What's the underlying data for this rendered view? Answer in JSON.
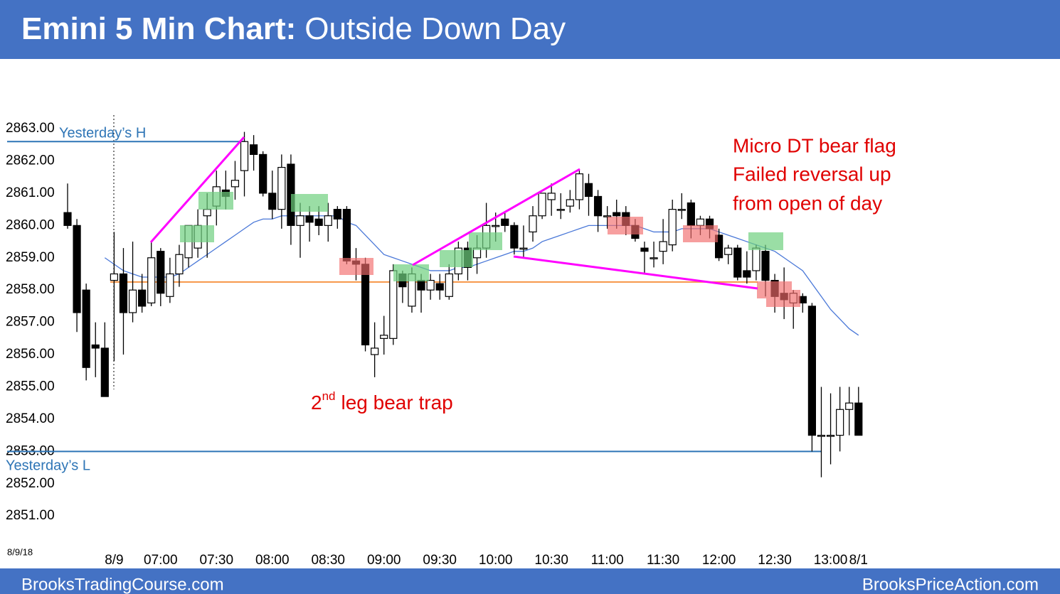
{
  "chart_data": {
    "type": "candlestick",
    "title_bold": "Emini 5 Min Chart:",
    "title": "Outside Down Day",
    "date_label": "8/9/18",
    "categories": [
      null,
      null,
      null,
      null,
      null,
      "8/9",
      null,
      null,
      null,
      null,
      "07:00",
      null,
      null,
      null,
      null,
      null,
      "07:30",
      null,
      null,
      null,
      null,
      null,
      "08:00",
      null,
      null,
      null,
      null,
      null,
      "08:30",
      null,
      null,
      null,
      null,
      null,
      "09:00",
      null,
      null,
      null,
      null,
      null,
      "09:30",
      null,
      null,
      null,
      null,
      null,
      "10:00",
      null,
      null,
      null,
      null,
      null,
      "10:30",
      null,
      null,
      null,
      null,
      null,
      "11:00",
      null,
      null,
      null,
      null,
      null,
      "11:30",
      null,
      null,
      null,
      null,
      null,
      "12:00",
      null,
      null,
      null,
      null,
      null,
      "12:30",
      null,
      null,
      null,
      null,
      null,
      "13:00",
      null,
      null,
      "8/1"
    ],
    "open": [
      2860.4,
      2860.0,
      2858.0,
      2856.3,
      2856.2,
      2858.3,
      2858.5,
      2857.3,
      2858.0,
      2857.6,
      2859.2,
      2857.8,
      2858.5,
      2859.0,
      2859.3,
      2860.3,
      2860.6,
      2861.1,
      2861.2,
      2861.7,
      2862.5,
      2862.2,
      2861.0,
      2860.5,
      2861.9,
      2860.0,
      2860.3,
      2860.2,
      2860.0,
      2860.5,
      2860.5,
      2858.9,
      2858.8,
      2856.0,
      2856.5,
      2856.5,
      2858.5,
      2857.5,
      2858.3,
      2858.0,
      2858.2,
      2857.8,
      2858.5,
      2859.3,
      2859.0,
      2859.3,
      2860.0,
      2860.2,
      2860.0,
      2859.3,
      2859.8,
      2860.3,
      2860.8,
      2860.5,
      2860.6,
      2860.8,
      2861.3,
      2860.9,
      2860.3,
      2860.4,
      2860.4,
      2860.0,
      2859.3,
      2859.0,
      2859.2,
      2859.4,
      2860.5,
      2860.7,
      2860.0,
      2860.2,
      2859.7,
      2859.1,
      2859.3,
      2858.6,
      2858.6,
      2859.2,
      2858.3,
      2857.9,
      2857.6,
      2857.8,
      2857.5,
      2853.5,
      2853.5,
      2853.5,
      2854.3,
      2854.5
    ],
    "high": [
      2861.3,
      2860.2,
      2858.2,
      2857.0,
      2857.0,
      2859.8,
      2859.3,
      2859.5,
      2858.5,
      2859.5,
      2859.3,
      2859.0,
      2859.4,
      2860.0,
      2860.5,
      2861.0,
      2861.7,
      2861.7,
      2862.0,
      2862.9,
      2862.8,
      2862.3,
      2861.7,
      2862.2,
      2862.2,
      2860.7,
      2860.6,
      2860.6,
      2860.7,
      2860.6,
      2860.6,
      2859.3,
      2859.0,
      2857.0,
      2857.2,
      2858.8,
      2858.6,
      2858.7,
      2858.5,
      2858.5,
      2858.5,
      2858.8,
      2859.5,
      2859.5,
      2859.7,
      2860.7,
      2860.4,
      2860.4,
      2860.1,
      2860.0,
      2860.6,
      2861.0,
      2861.3,
      2861.0,
      2861.1,
      2861.7,
      2861.6,
      2861.1,
      2860.6,
      2860.8,
      2860.6,
      2860.2,
      2859.5,
      2859.5,
      2860.2,
      2860.8,
      2861.0,
      2860.8,
      2860.3,
      2860.3,
      2859.9,
      2859.4,
      2859.4,
      2859.2,
      2859.4,
      2859.4,
      2858.5,
      2858.7,
      2858.0,
      2857.9,
      2857.6,
      2855.0,
      2854.8,
      2855.0,
      2855.0,
      2855.0
    ],
    "low": [
      2859.9,
      2856.7,
      2855.2,
      2855.3,
      2854.8,
      2855.8,
      2856.0,
      2857.0,
      2857.3,
      2857.5,
      2857.5,
      2857.6,
      2858.1,
      2858.7,
      2859.0,
      2859.0,
      2860.0,
      2860.5,
      2860.8,
      2860.9,
      2861.7,
      2860.9,
      2860.2,
      2859.9,
      2859.4,
      2859.0,
      2859.5,
      2859.7,
      2859.5,
      2859.9,
      2858.8,
      2858.3,
      2856.1,
      2855.3,
      2856.0,
      2856.3,
      2857.6,
      2857.3,
      2857.3,
      2857.7,
      2857.7,
      2857.7,
      2858.3,
      2858.3,
      2858.5,
      2859.0,
      2859.5,
      2859.8,
      2859.1,
      2859.0,
      2859.5,
      2860.2,
      2860.3,
      2860.2,
      2860.4,
      2860.5,
      2860.3,
      2859.8,
      2859.9,
      2859.9,
      2859.7,
      2859.5,
      2858.5,
      2858.7,
      2858.8,
      2859.2,
      2860.2,
      2859.6,
      2859.7,
      2859.6,
      2858.9,
      2858.8,
      2858.3,
      2858.2,
      2858.3,
      2857.8,
      2857.3,
      2857.1,
      2856.8,
      2857.3,
      2853.0,
      2852.2,
      2852.6,
      2853.0,
      2853.5,
      2853.5
    ],
    "close": [
      2860.0,
      2857.3,
      2855.6,
      2856.2,
      2854.7,
      2858.5,
      2857.3,
      2858.0,
      2857.5,
      2859.0,
      2857.9,
      2858.5,
      2859.1,
      2860.0,
      2860.0,
      2860.5,
      2861.2,
      2860.9,
      2861.4,
      2862.6,
      2862.2,
      2861.0,
      2860.5,
      2861.8,
      2860.0,
      2860.3,
      2860.1,
      2860.0,
      2860.3,
      2860.2,
      2858.9,
      2858.8,
      2856.3,
      2856.2,
      2856.6,
      2858.6,
      2858.1,
      2858.5,
      2858.0,
      2858.3,
      2858.0,
      2858.5,
      2859.3,
      2858.7,
      2859.3,
      2860.0,
      2860.0,
      2860.0,
      2859.3,
      2859.3,
      2860.3,
      2861.0,
      2861.0,
      2860.5,
      2860.8,
      2861.6,
      2860.9,
      2860.3,
      2860.3,
      2860.3,
      2860.0,
      2859.6,
      2859.2,
      2859.0,
      2859.5,
      2860.5,
      2860.5,
      2860.0,
      2860.2,
      2859.9,
      2859.0,
      2859.3,
      2858.4,
      2858.4,
      2859.3,
      2858.3,
      2857.8,
      2857.7,
      2857.9,
      2857.6,
      2853.5,
      2853.5,
      2853.5,
      2854.3,
      2854.5,
      2853.5
    ],
    "ema": {
      "color": "#4a78d8",
      "values": [
        null,
        null,
        null,
        null,
        2859.0,
        2858.8,
        2858.6,
        2858.5,
        2858.4,
        2858.4,
        2858.4,
        2858.4,
        2858.5,
        2858.7,
        2858.9,
        2859.1,
        2859.3,
        2859.5,
        2859.7,
        2859.9,
        2860.1,
        2860.2,
        2860.2,
        2860.3,
        2860.3,
        2860.3,
        2860.3,
        2860.3,
        2860.3,
        2860.3,
        2860.1,
        2860.0,
        2859.7,
        2859.4,
        2859.1,
        2859.0,
        2858.9,
        2858.8,
        2858.7,
        2858.6,
        2858.6,
        2858.6,
        2858.7,
        2858.7,
        2858.8,
        2858.9,
        2859.0,
        2859.1,
        2859.2,
        2859.2,
        2859.3,
        2859.5,
        2859.6,
        2859.7,
        2859.8,
        2859.9,
        2860.0,
        2860.0,
        2860.0,
        2860.0,
        2860.0,
        2860.0,
        2859.9,
        2859.8,
        2859.8,
        2859.8,
        2859.9,
        2859.9,
        2859.9,
        2859.9,
        2859.8,
        2859.7,
        2859.6,
        2859.5,
        2859.4,
        2859.3,
        2859.2,
        2859.0,
        2858.8,
        2858.6,
        2858.2,
        2857.8,
        2857.4,
        2857.1,
        2856.8,
        2856.6
      ]
    },
    "levels": [
      {
        "name": "Yesterday’s H",
        "value": 2862.6,
        "color": "#2e75b6"
      },
      {
        "name": "Yesterday’s L",
        "value": 2853.0,
        "color": "#2e75b6"
      },
      {
        "value": 2858.25,
        "color": "#f79646"
      }
    ],
    "ylim": [
      2850.3,
      2864.3
    ],
    "yticks": [
      {
        "value": 2851,
        "label": "2851.00"
      },
      {
        "value": 2852,
        "label": "2852.00"
      },
      {
        "value": 2853,
        "label": "2853.00"
      },
      {
        "value": 2854,
        "label": "2854.00"
      },
      {
        "value": 2855,
        "label": "2855.00"
      },
      {
        "value": 2856,
        "label": "2856.00"
      },
      {
        "value": 2857,
        "label": "2857.00"
      },
      {
        "value": 2858,
        "label": "2858.00"
      },
      {
        "value": 2859,
        "label": "2859.00"
      },
      {
        "value": 2860,
        "label": "2860.00"
      },
      {
        "value": 2861,
        "label": "2861.00"
      },
      {
        "value": 2862,
        "label": "2862.00"
      },
      {
        "value": 2863,
        "label": "2863.00"
      }
    ],
    "annotations": [
      "Micro DT bear flag",
      "Failed reversal up",
      "from open of day"
    ],
    "trap_label": {
      "ordinal": "2",
      "suffix": "nd",
      "text": "leg bear trap"
    },
    "footer": [
      "BrooksTradingCourse.com",
      "BrooksPriceAction.com"
    ]
  }
}
